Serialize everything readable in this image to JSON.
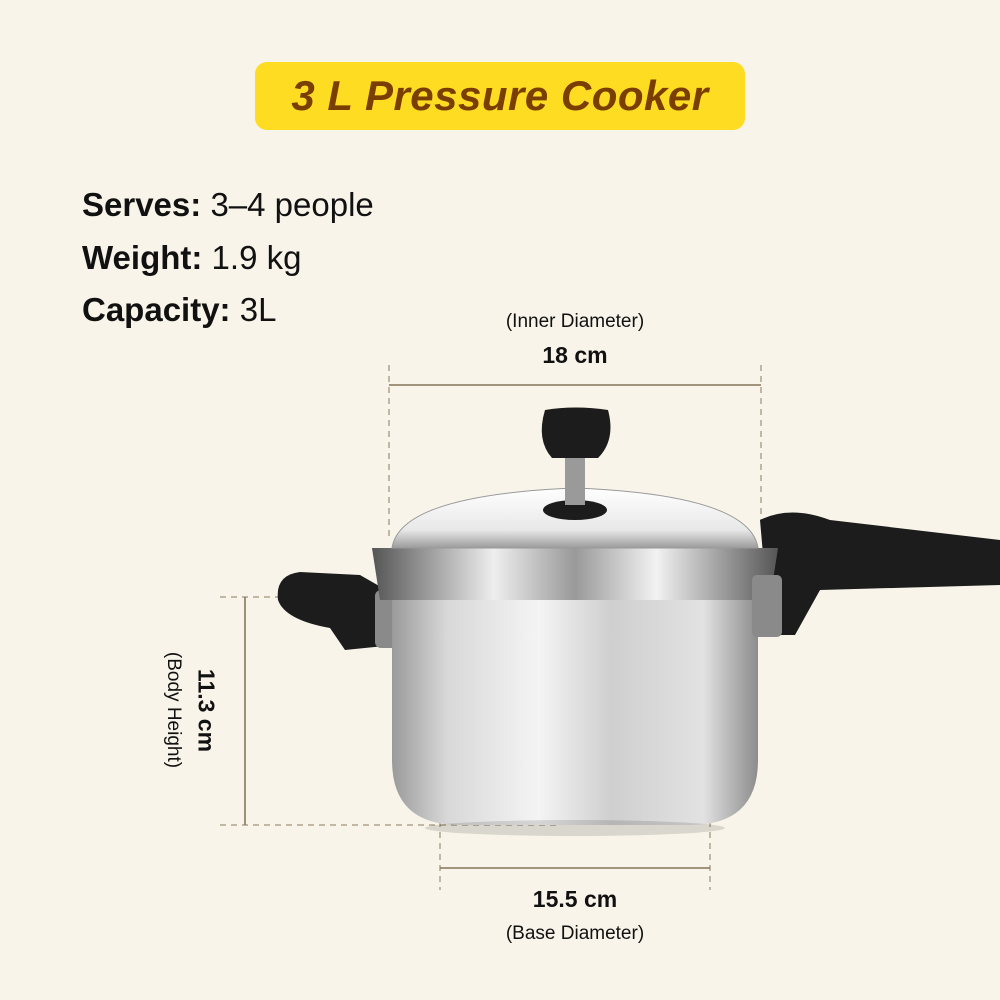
{
  "title": "3 L Pressure Cooker",
  "specs": [
    {
      "label": "Serves:",
      "value": "3–4 people"
    },
    {
      "label": "Weight:",
      "value": "1.9 kg"
    },
    {
      "label": "Capacity:",
      "value": "3L"
    }
  ],
  "dimensions": {
    "inner_diameter": {
      "caption": "(Inner Diameter)",
      "value": "18 cm"
    },
    "body_height": {
      "caption": "(Body Height)",
      "value": "11.3 cm"
    },
    "base_diameter": {
      "caption": "(Base Diameter)",
      "value": "15.5 cm"
    }
  },
  "colors": {
    "background": "#F8F4EA",
    "title_bg": "#FDDC22",
    "title_text": "#7A3E00"
  }
}
